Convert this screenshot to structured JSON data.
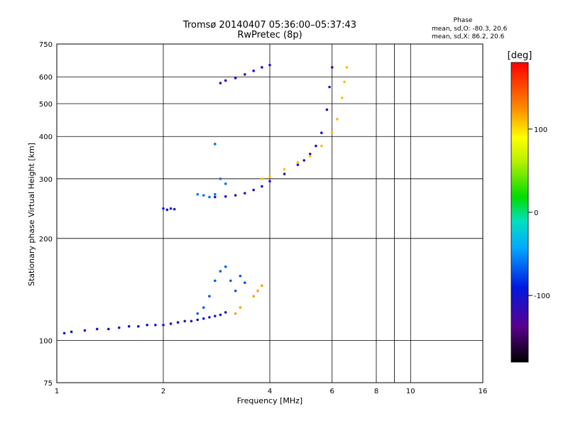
{
  "chart_data": {
    "type": "scatter",
    "title": "Tromsø 20140407 05:36:00–05:37:43",
    "subtitle": "RwPretec (8p)",
    "phase_box": {
      "heading": "Phase",
      "line_o": "mean, sd,O: -80.3, 20.6",
      "line_x": "mean, sd,X:  86.2, 20.6"
    },
    "xlabel": "Frequency [MHz]",
    "ylabel": "Stationary phase Virtual Height [km]",
    "x_scale": "log",
    "y_scale": "log",
    "xlim": [
      1,
      16
    ],
    "ylim": [
      75,
      750
    ],
    "x_ticks": [
      1,
      2,
      4,
      6,
      8,
      10,
      16
    ],
    "x_minor_ticks": [
      9
    ],
    "y_ticks": [
      75,
      100,
      200,
      300,
      400,
      500,
      600,
      750
    ],
    "grid": true,
    "colorbar": {
      "label": "[deg]",
      "ticks": [
        100,
        0,
        -100
      ],
      "range": [
        -180,
        180
      ]
    },
    "series": [
      {
        "values": [
          [
            1.05,
            105
          ],
          [
            1.1,
            106
          ],
          [
            1.2,
            107
          ],
          [
            1.3,
            108
          ],
          [
            1.4,
            108
          ],
          [
            1.5,
            109
          ],
          [
            1.6,
            110
          ],
          [
            1.7,
            110
          ],
          [
            1.8,
            111
          ],
          [
            1.9,
            111
          ],
          [
            2.0,
            111
          ],
          [
            2.1,
            112
          ],
          [
            2.2,
            113
          ],
          [
            2.3,
            114
          ],
          [
            2.4,
            114
          ],
          [
            2.5,
            115
          ],
          [
            2.6,
            116
          ],
          [
            2.7,
            117
          ],
          [
            2.8,
            118
          ],
          [
            2.9,
            119
          ],
          [
            3.0,
            121
          ]
        ],
        "phase": -100
      },
      {
        "values": [
          [
            2.5,
            120
          ],
          [
            2.6,
            125
          ],
          [
            2.7,
            135
          ],
          [
            2.8,
            150
          ],
          [
            2.9,
            160
          ],
          [
            3.0,
            165
          ],
          [
            3.1,
            150
          ],
          [
            3.2,
            140
          ],
          [
            3.3,
            155
          ],
          [
            3.4,
            148
          ]
        ],
        "phase": -70
      },
      {
        "values": [
          [
            3.6,
            135
          ],
          [
            3.7,
            140
          ],
          [
            3.8,
            145
          ],
          [
            3.2,
            120
          ],
          [
            3.3,
            125
          ]
        ],
        "phase": 120
      },
      {
        "values": [
          [
            2.5,
            270
          ],
          [
            2.6,
            268
          ],
          [
            2.7,
            265
          ],
          [
            2.8,
            270
          ],
          [
            2.9,
            300
          ],
          [
            3.0,
            290
          ],
          [
            2.8,
            380
          ]
        ],
        "phase": -60
      },
      {
        "values": [
          [
            2.8,
            265
          ],
          [
            3.0,
            266
          ],
          [
            3.2,
            268
          ],
          [
            3.4,
            272
          ],
          [
            3.6,
            278
          ],
          [
            3.8,
            285
          ],
          [
            4.0,
            295
          ],
          [
            4.4,
            310
          ],
          [
            4.8,
            330
          ],
          [
            5.0,
            340
          ],
          [
            5.2,
            355
          ],
          [
            5.4,
            375
          ],
          [
            5.6,
            410
          ],
          [
            5.8,
            480
          ],
          [
            5.9,
            560
          ],
          [
            6.0,
            640
          ]
        ],
        "phase": -110
      },
      {
        "values": [
          [
            3.8,
            300
          ],
          [
            4.0,
            305
          ],
          [
            4.4,
            320
          ],
          [
            4.8,
            335
          ],
          [
            5.2,
            350
          ],
          [
            5.6,
            375
          ],
          [
            6.0,
            410
          ],
          [
            6.2,
            450
          ],
          [
            6.4,
            520
          ],
          [
            6.5,
            580
          ],
          [
            6.6,
            640
          ]
        ],
        "phase": 110
      },
      {
        "values": [
          [
            2.0,
            245
          ],
          [
            2.05,
            243
          ],
          [
            2.1,
            245
          ],
          [
            2.15,
            244
          ]
        ],
        "phase": -95
      },
      {
        "values": [
          [
            2.9,
            575
          ],
          [
            3.0,
            585
          ],
          [
            3.2,
            595
          ],
          [
            3.4,
            610
          ],
          [
            3.6,
            625
          ],
          [
            3.8,
            640
          ],
          [
            4.0,
            650
          ]
        ],
        "phase": -105
      }
    ]
  }
}
